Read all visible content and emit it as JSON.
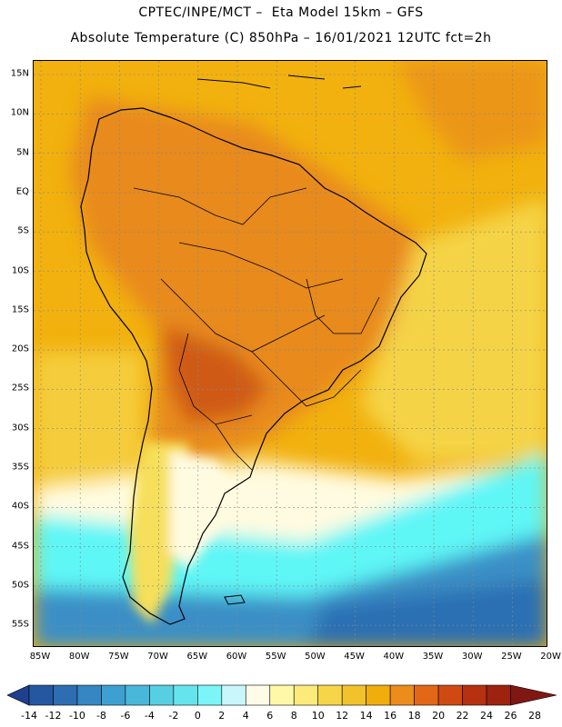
{
  "header": {
    "line1": "CPTEC/INPE/MCT –  Eta Model 15km – GFS",
    "line2": "Absolute Temperature (C) 850hPa – 16/01/2021 12UTC fct=2h"
  },
  "map": {
    "lat_labels": [
      "15N",
      "10N",
      "5N",
      "EQ",
      "5S",
      "10S",
      "15S",
      "20S",
      "25S",
      "30S",
      "35S",
      "40S",
      "45S",
      "50S",
      "55S"
    ],
    "lon_labels": [
      "85W",
      "80W",
      "75W",
      "70W",
      "65W",
      "60W",
      "55W",
      "50W",
      "45W",
      "40W",
      "35W",
      "30W",
      "25W",
      "20W"
    ],
    "colors": {
      "ocean_warm": "#f2b10e",
      "land_hot": "#e88a1e",
      "land_very_hot": "#cf5a12",
      "cool_yellow": "#f6df5a",
      "cream": "#fffbe0",
      "cyan": "#5ef6f6",
      "blue": "#3a8fc6",
      "deep_blue": "#2b6cb0",
      "coast": "#000000"
    }
  },
  "colorbar": {
    "ticks": [
      "-14",
      "-12",
      "-10",
      "-8",
      "-6",
      "-4",
      "-2",
      "0",
      "2",
      "4",
      "6",
      "8",
      "10",
      "12",
      "14",
      "16",
      "18",
      "20",
      "22",
      "24",
      "26",
      "28"
    ],
    "colors": [
      "#1f3f8f",
      "#2556a0",
      "#2d6db2",
      "#3586c3",
      "#3ea0d0",
      "#49b7da",
      "#56cfe3",
      "#66e4ee",
      "#7bf5f7",
      "#c9f6fb",
      "#fffbe6",
      "#fff8a8",
      "#fcea7a",
      "#f6d648",
      "#f1c22b",
      "#f0ad0c",
      "#ec8c1a",
      "#e26716",
      "#cf4a12",
      "#b73110",
      "#9e2210",
      "#7f1713"
    ]
  }
}
